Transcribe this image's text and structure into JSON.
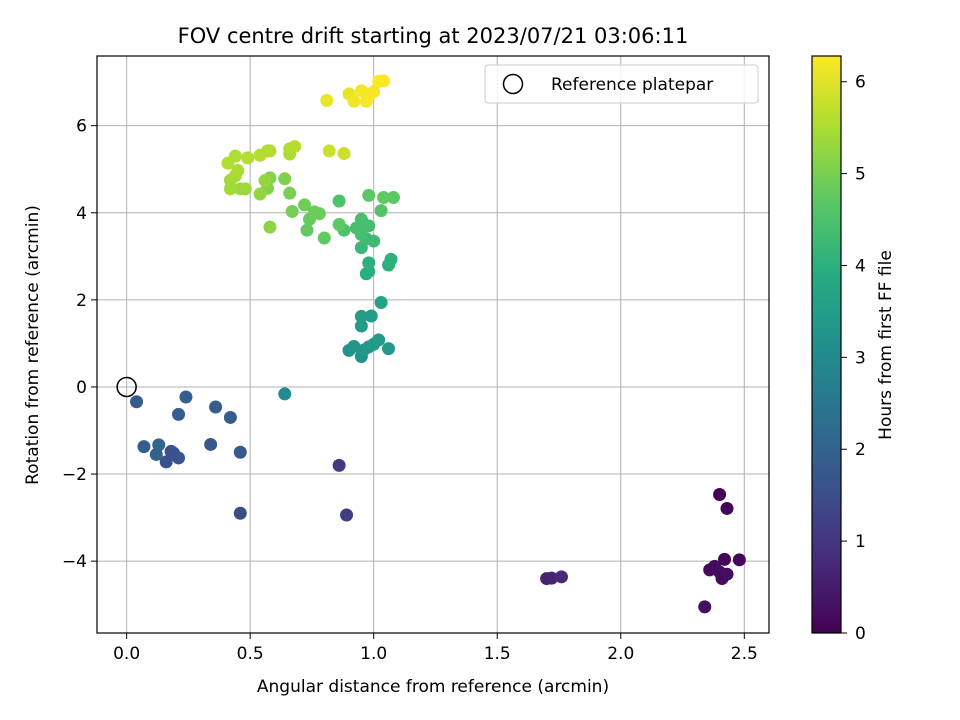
{
  "chart_data": {
    "type": "scatter",
    "title": "FOV centre drift starting at 2023/07/21 03:06:11",
    "xlabel": "Angular distance from reference (arcmin)",
    "ylabel": "Rotation from reference (arcmin)",
    "xlim": [
      -0.12,
      2.6
    ],
    "ylim": [
      -5.65,
      7.6
    ],
    "x_ticks": [
      0.0,
      0.5,
      1.0,
      1.5,
      2.0,
      2.5
    ],
    "x_tick_labels": [
      "0.0",
      "0.5",
      "1.0",
      "1.5",
      "2.0",
      "2.5"
    ],
    "y_ticks": [
      -4,
      -2,
      0,
      2,
      4,
      6
    ],
    "y_tick_labels": [
      "−4",
      "−2",
      "0",
      "2",
      "4",
      "6"
    ],
    "grid": true,
    "legend": {
      "position": "top-right",
      "entries": [
        "Reference platepar"
      ]
    },
    "reference_point": {
      "x": 0.0,
      "y": 0.0
    },
    "colorbar": {
      "label": "Hours from first FF file",
      "min": 0,
      "max": 6.28,
      "ticks": [
        0,
        1,
        2,
        3,
        4,
        5,
        6
      ],
      "tick_labels": [
        "0",
        "1",
        "2",
        "3",
        "4",
        "5",
        "6"
      ],
      "colormap": "viridis"
    },
    "series": [
      {
        "points": [
          {
            "x": 2.4,
            "y": -2.47,
            "c": 0.05
          },
          {
            "x": 2.43,
            "y": -2.79,
            "c": 0.08
          },
          {
            "x": 2.48,
            "y": -3.97,
            "c": 0.12
          },
          {
            "x": 2.42,
            "y": -3.96,
            "c": 0.1
          },
          {
            "x": 2.38,
            "y": -4.12,
            "c": 0.14
          },
          {
            "x": 2.36,
            "y": -4.2,
            "c": 0.16
          },
          {
            "x": 2.43,
            "y": -4.3,
            "c": 0.18
          },
          {
            "x": 2.41,
            "y": -4.4,
            "c": 0.2
          },
          {
            "x": 2.4,
            "y": -4.25,
            "c": 0.22
          },
          {
            "x": 2.34,
            "y": -5.05,
            "c": 0.25
          },
          {
            "x": 1.7,
            "y": -4.4,
            "c": 0.6
          },
          {
            "x": 1.72,
            "y": -4.39,
            "c": 0.65
          },
          {
            "x": 1.76,
            "y": -4.36,
            "c": 0.75
          },
          {
            "x": 0.86,
            "y": -1.8,
            "c": 1.1
          },
          {
            "x": 0.89,
            "y": -2.94,
            "c": 1.15
          },
          {
            "x": 0.46,
            "y": -2.9,
            "c": 1.5
          },
          {
            "x": 0.46,
            "y": -1.5,
            "c": 1.8
          },
          {
            "x": 0.42,
            "y": -0.7,
            "c": 1.9
          },
          {
            "x": 0.36,
            "y": -0.46,
            "c": 1.85
          },
          {
            "x": 0.34,
            "y": -1.32,
            "c": 1.75
          },
          {
            "x": 0.24,
            "y": -0.23,
            "c": 1.95
          },
          {
            "x": 0.21,
            "y": -0.63,
            "c": 1.9
          },
          {
            "x": 0.21,
            "y": -1.63,
            "c": 1.7
          },
          {
            "x": 0.19,
            "y": -1.52,
            "c": 1.65
          },
          {
            "x": 0.18,
            "y": -1.48,
            "c": 1.6
          },
          {
            "x": 0.16,
            "y": -1.72,
            "c": 1.6
          },
          {
            "x": 0.13,
            "y": -1.33,
            "c": 2.1
          },
          {
            "x": 0.12,
            "y": -1.55,
            "c": 1.95
          },
          {
            "x": 0.07,
            "y": -1.37,
            "c": 1.9
          },
          {
            "x": 0.04,
            "y": -0.34,
            "c": 1.85
          },
          {
            "x": 0.64,
            "y": -0.16,
            "c": 3.0
          },
          {
            "x": 0.95,
            "y": 0.7,
            "c": 3.2
          },
          {
            "x": 0.9,
            "y": 0.84,
            "c": 3.25
          },
          {
            "x": 0.92,
            "y": 0.93,
            "c": 3.3
          },
          {
            "x": 0.96,
            "y": 0.85,
            "c": 3.3
          },
          {
            "x": 0.98,
            "y": 0.92,
            "c": 3.35
          },
          {
            "x": 1.0,
            "y": 0.98,
            "c": 3.4
          },
          {
            "x": 1.02,
            "y": 1.08,
            "c": 3.4
          },
          {
            "x": 1.06,
            "y": 0.88,
            "c": 3.35
          },
          {
            "x": 0.95,
            "y": 1.4,
            "c": 3.45
          },
          {
            "x": 0.95,
            "y": 1.62,
            "c": 3.5
          },
          {
            "x": 0.99,
            "y": 1.63,
            "c": 3.55
          },
          {
            "x": 1.03,
            "y": 1.94,
            "c": 3.6
          },
          {
            "x": 0.97,
            "y": 2.6,
            "c": 3.9
          },
          {
            "x": 0.98,
            "y": 2.65,
            "c": 3.95
          },
          {
            "x": 0.98,
            "y": 2.85,
            "c": 4.0
          },
          {
            "x": 1.06,
            "y": 2.8,
            "c": 4.0
          },
          {
            "x": 1.07,
            "y": 2.93,
            "c": 4.05
          },
          {
            "x": 0.95,
            "y": 3.2,
            "c": 4.2
          },
          {
            "x": 0.97,
            "y": 3.4,
            "c": 4.3
          },
          {
            "x": 1.0,
            "y": 3.35,
            "c": 4.3
          },
          {
            "x": 0.95,
            "y": 3.5,
            "c": 4.35
          },
          {
            "x": 0.93,
            "y": 3.65,
            "c": 4.4
          },
          {
            "x": 0.95,
            "y": 3.85,
            "c": 4.45
          },
          {
            "x": 0.98,
            "y": 3.7,
            "c": 4.4
          },
          {
            "x": 0.88,
            "y": 3.6,
            "c": 4.5
          },
          {
            "x": 0.86,
            "y": 4.27,
            "c": 4.5
          },
          {
            "x": 0.98,
            "y": 4.4,
            "c": 4.7
          },
          {
            "x": 1.04,
            "y": 4.35,
            "c": 4.75
          },
          {
            "x": 1.08,
            "y": 4.35,
            "c": 4.7
          },
          {
            "x": 1.03,
            "y": 4.05,
            "c": 4.6
          },
          {
            "x": 0.86,
            "y": 3.73,
            "c": 4.7
          },
          {
            "x": 0.8,
            "y": 3.42,
            "c": 4.75
          },
          {
            "x": 0.73,
            "y": 3.6,
            "c": 4.75
          },
          {
            "x": 0.74,
            "y": 3.85,
            "c": 4.8
          },
          {
            "x": 0.76,
            "y": 4.02,
            "c": 4.85
          },
          {
            "x": 0.78,
            "y": 3.98,
            "c": 4.85
          },
          {
            "x": 0.72,
            "y": 4.18,
            "c": 4.9
          },
          {
            "x": 0.67,
            "y": 4.03,
            "c": 4.95
          },
          {
            "x": 0.66,
            "y": 4.45,
            "c": 5.0
          },
          {
            "x": 0.64,
            "y": 4.78,
            "c": 5.05
          },
          {
            "x": 0.58,
            "y": 4.8,
            "c": 5.1
          },
          {
            "x": 0.57,
            "y": 4.56,
            "c": 5.1
          },
          {
            "x": 0.58,
            "y": 3.67,
            "c": 5.2
          },
          {
            "x": 0.56,
            "y": 4.74,
            "c": 5.3
          },
          {
            "x": 0.54,
            "y": 4.43,
            "c": 5.25
          },
          {
            "x": 0.48,
            "y": 4.55,
            "c": 5.35
          },
          {
            "x": 0.46,
            "y": 4.55,
            "c": 5.35
          },
          {
            "x": 0.42,
            "y": 4.55,
            "c": 5.4
          },
          {
            "x": 0.42,
            "y": 4.75,
            "c": 5.4
          },
          {
            "x": 0.44,
            "y": 4.85,
            "c": 5.45
          },
          {
            "x": 0.45,
            "y": 4.97,
            "c": 5.5
          },
          {
            "x": 0.41,
            "y": 5.14,
            "c": 5.55
          },
          {
            "x": 0.44,
            "y": 5.3,
            "c": 5.55
          },
          {
            "x": 0.49,
            "y": 5.26,
            "c": 5.6
          },
          {
            "x": 0.54,
            "y": 5.32,
            "c": 5.6
          },
          {
            "x": 0.57,
            "y": 5.42,
            "c": 5.55
          },
          {
            "x": 0.58,
            "y": 5.42,
            "c": 5.6
          },
          {
            "x": 0.66,
            "y": 5.35,
            "c": 5.5
          },
          {
            "x": 0.66,
            "y": 5.47,
            "c": 5.55
          },
          {
            "x": 0.68,
            "y": 5.52,
            "c": 5.6
          },
          {
            "x": 0.82,
            "y": 5.42,
            "c": 5.8
          },
          {
            "x": 0.88,
            "y": 5.36,
            "c": 5.8
          },
          {
            "x": 0.81,
            "y": 6.58,
            "c": 6.1
          },
          {
            "x": 0.9,
            "y": 6.73,
            "c": 6.1
          },
          {
            "x": 0.92,
            "y": 6.56,
            "c": 6.15
          },
          {
            "x": 0.95,
            "y": 6.8,
            "c": 6.2
          },
          {
            "x": 0.97,
            "y": 6.56,
            "c": 6.2
          },
          {
            "x": 0.98,
            "y": 6.72,
            "c": 6.22
          },
          {
            "x": 1.0,
            "y": 6.78,
            "c": 6.22
          },
          {
            "x": 1.02,
            "y": 7.02,
            "c": 6.25
          },
          {
            "x": 1.04,
            "y": 7.03,
            "c": 6.25
          }
        ]
      }
    ]
  }
}
